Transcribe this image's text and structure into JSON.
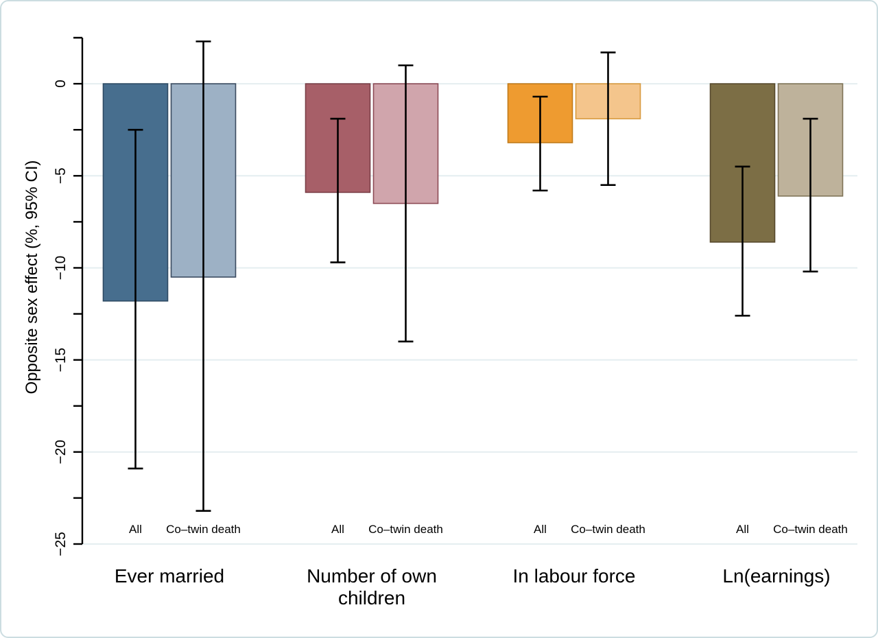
{
  "figure": {
    "background": "#ffffff",
    "border_color": "#ccdde1",
    "grid_color": "#e4eef0",
    "axis_color": "#000000"
  },
  "chart_data": {
    "type": "bar",
    "title": "",
    "ylabel": "Opposite sex effect (%, 95% CI)",
    "xlabel": "",
    "ylim": [
      -25,
      2.5
    ],
    "tick_step": 2.5,
    "grid": true,
    "grid_values": [
      0,
      -5,
      -10,
      -15,
      -20,
      -25
    ],
    "y_tick_labels": [
      {
        "value": 0,
        "label": "0"
      },
      {
        "value": -5,
        "label": "−5"
      },
      {
        "value": -10,
        "label": "−10"
      },
      {
        "value": -15,
        "label": "−15"
      },
      {
        "value": -20,
        "label": "−20"
      },
      {
        "value": -25,
        "label": "−25"
      }
    ],
    "series_names": [
      "All",
      "Co–twin death"
    ],
    "groups": [
      {
        "label": "Ever married",
        "label_lines": [
          "Ever married"
        ],
        "bars": [
          {
            "series": "All",
            "value": -11.8,
            "ci": [
              -20.9,
              -2.5
            ],
            "fill": "#476e8e",
            "stroke": "#2e4a63"
          },
          {
            "series": "Co–twin death",
            "value": -10.5,
            "ci": [
              -23.2,
              2.3
            ],
            "fill": "#9db1c5",
            "stroke": "#3a4a5f"
          }
        ]
      },
      {
        "label": "Number of own children",
        "label_lines": [
          "Number of own",
          "children"
        ],
        "bars": [
          {
            "series": "All",
            "value": -5.9,
            "ci": [
              -9.7,
              -1.9
            ],
            "fill": "#a75f68",
            "stroke": "#7a3f47"
          },
          {
            "series": "Co–twin death",
            "value": -6.5,
            "ci": [
              -14.0,
              1.0
            ],
            "fill": "#d0a5ac",
            "stroke": "#8c4a55"
          }
        ]
      },
      {
        "label": "In labour force",
        "label_lines": [
          "In labour force"
        ],
        "bars": [
          {
            "series": "All",
            "value": -3.2,
            "ci": [
              -5.8,
              -0.7
            ],
            "fill": "#ee9b30",
            "stroke": "#c07a1a"
          },
          {
            "series": "Co–twin death",
            "value": -1.9,
            "ci": [
              -5.5,
              1.7
            ],
            "fill": "#f4c58c",
            "stroke": "#d89a3e"
          }
        ]
      },
      {
        "label": "Ln(earnings)",
        "label_lines": [
          "Ln(earnings)"
        ],
        "bars": [
          {
            "series": "All",
            "value": -8.6,
            "ci": [
              -12.6,
              -4.5
            ],
            "fill": "#7c6e45",
            "stroke": "#57492c"
          },
          {
            "series": "Co–twin death",
            "value": -6.1,
            "ci": [
              -10.2,
              -1.9
            ],
            "fill": "#beb29b",
            "stroke": "#7f7356"
          }
        ]
      }
    ]
  }
}
